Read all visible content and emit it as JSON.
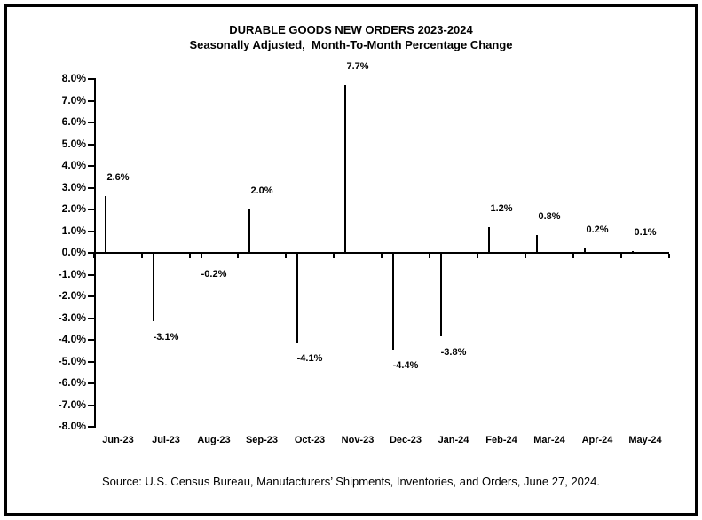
{
  "chart_data": {
    "type": "bar",
    "title": "DURABLE GOODS NEW ORDERS 2023-2024",
    "subtitle": "Seasonally Adjusted,  Month-To-Month Percentage Change",
    "categories": [
      "Jun-23",
      "Jul-23",
      "Aug-23",
      "Sep-23",
      "Oct-23",
      "Nov-23",
      "Dec-23",
      "Jan-24",
      "Feb-24",
      "Mar-24",
      "Apr-24",
      "May-24"
    ],
    "values": [
      2.6,
      -3.1,
      -0.2,
      2.0,
      -4.1,
      7.7,
      -4.4,
      -3.8,
      1.2,
      0.8,
      0.2,
      0.1
    ],
    "value_labels": [
      "2.6%",
      "-3.1%",
      "-0.2%",
      "2.0%",
      "-4.1%",
      "7.7%",
      "-4.4%",
      "-3.8%",
      "1.2%",
      "0.8%",
      "0.2%",
      "0.1%"
    ],
    "ylim": [
      -8.0,
      8.0
    ],
    "ytick_step": 1.0,
    "ytick_labels": [
      "8.0%",
      "7.0%",
      "6.0%",
      "5.0%",
      "4.0%",
      "3.0%",
      "2.0%",
      "1.0%",
      "0.0%",
      "-1.0%",
      "-2.0%",
      "-3.0%",
      "-4.0%",
      "-5.0%",
      "-6.0%",
      "-7.0%",
      "-8.0%"
    ],
    "xlabel": "",
    "ylabel": "",
    "grid": false,
    "legend": "none",
    "bar_color": "#33CCCC",
    "bar_border_color": "#000000",
    "axis_color": "#000000",
    "text_color": "#000000"
  },
  "source_note": "Source: U.S. Census Bureau, Manufacturers’ Shipments, Inventories, and Orders, June 27, 2024."
}
